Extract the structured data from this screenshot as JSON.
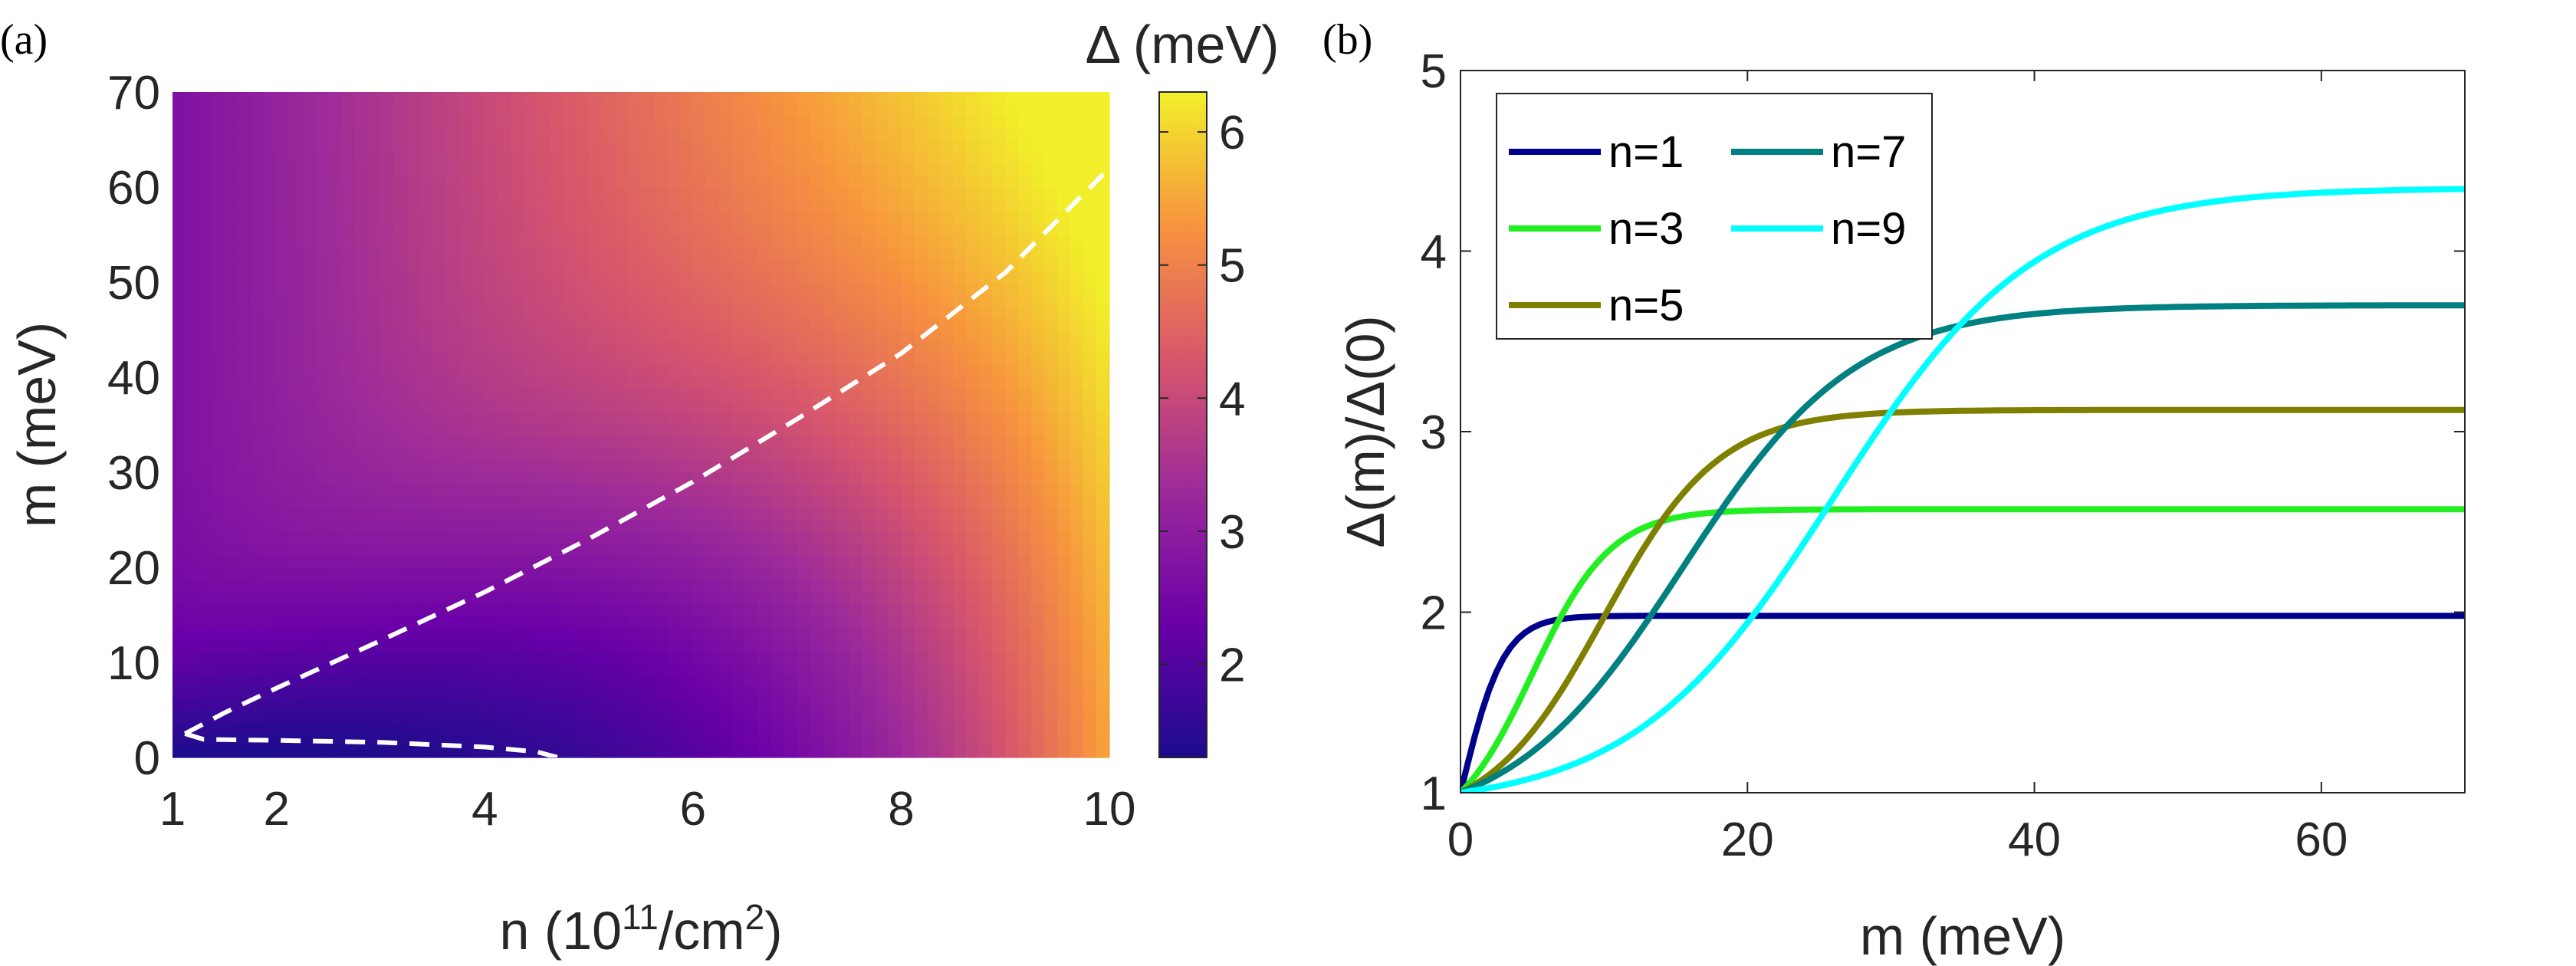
{
  "chart_data": [
    {
      "type": "heatmap",
      "panel_label": "(a)",
      "xlabel": {
        "prefix": "n (10",
        "sup1": "11",
        "mid": "/cm",
        "sup2": "2",
        "suffix": ")"
      },
      "ylabel": "m (meV)",
      "xlim": [
        1,
        10
      ],
      "ylim": [
        0,
        70
      ],
      "xticks": [
        1,
        2,
        4,
        6,
        8,
        10
      ],
      "yticks": [
        0,
        10,
        20,
        30,
        40,
        50,
        60,
        70
      ],
      "colorbar": {
        "title": "Δ (meV)",
        "range": [
          1.3,
          6.3
        ],
        "ticks": [
          2,
          3,
          4,
          5,
          6
        ]
      },
      "contours": [
        {
          "style": "dashed",
          "color": "#ffffff",
          "points": [
            [
              1.12,
              2.5
            ],
            [
              1.5,
              4.7
            ],
            [
              2,
              7.3
            ],
            [
              3,
              12.3
            ],
            [
              4,
              17.4
            ],
            [
              5,
              23.0
            ],
            [
              6,
              29.0
            ],
            [
              7,
              35.6
            ],
            [
              8,
              42.5
            ],
            [
              9,
              51.0
            ],
            [
              10,
              62.0
            ]
          ]
        },
        {
          "style": "dashed",
          "color": "#ffffff",
          "points": [
            [
              1.12,
              2.5
            ],
            [
              1.3,
              1.9
            ],
            [
              2,
              1.8
            ],
            [
              3,
              1.6
            ],
            [
              4,
              1.1
            ],
            [
              4.5,
              0.6
            ],
            [
              4.7,
              0.0
            ]
          ]
        }
      ]
    },
    {
      "type": "line",
      "panel_label": "(b)",
      "xlabel": "m (meV)",
      "ylabel": "Δ(m)/Δ(0)",
      "xlim": [
        0,
        70
      ],
      "ylim": [
        1,
        5
      ],
      "xticks": [
        0,
        20,
        40,
        60
      ],
      "yticks": [
        1,
        2,
        3,
        4,
        5
      ],
      "series": [
        {
          "name": "n=1",
          "color": "#00008b",
          "plateau": 1.98,
          "center": 0.0,
          "width": 3.0
        },
        {
          "name": "n=3",
          "color": "#22ee22",
          "plateau": 2.57,
          "center": 5.0,
          "width": 5.5
        },
        {
          "name": "n=5",
          "color": "#808000",
          "plateau": 3.12,
          "center": 10.0,
          "width": 8.0
        },
        {
          "name": "n=7",
          "color": "#008080",
          "plateau": 3.7,
          "center": 15.5,
          "width": 12.0
        },
        {
          "name": "n=9",
          "color": "#00ffff",
          "plateau": 4.35,
          "center": 26.0,
          "width": 14.0
        }
      ],
      "legend": "top-left"
    }
  ]
}
